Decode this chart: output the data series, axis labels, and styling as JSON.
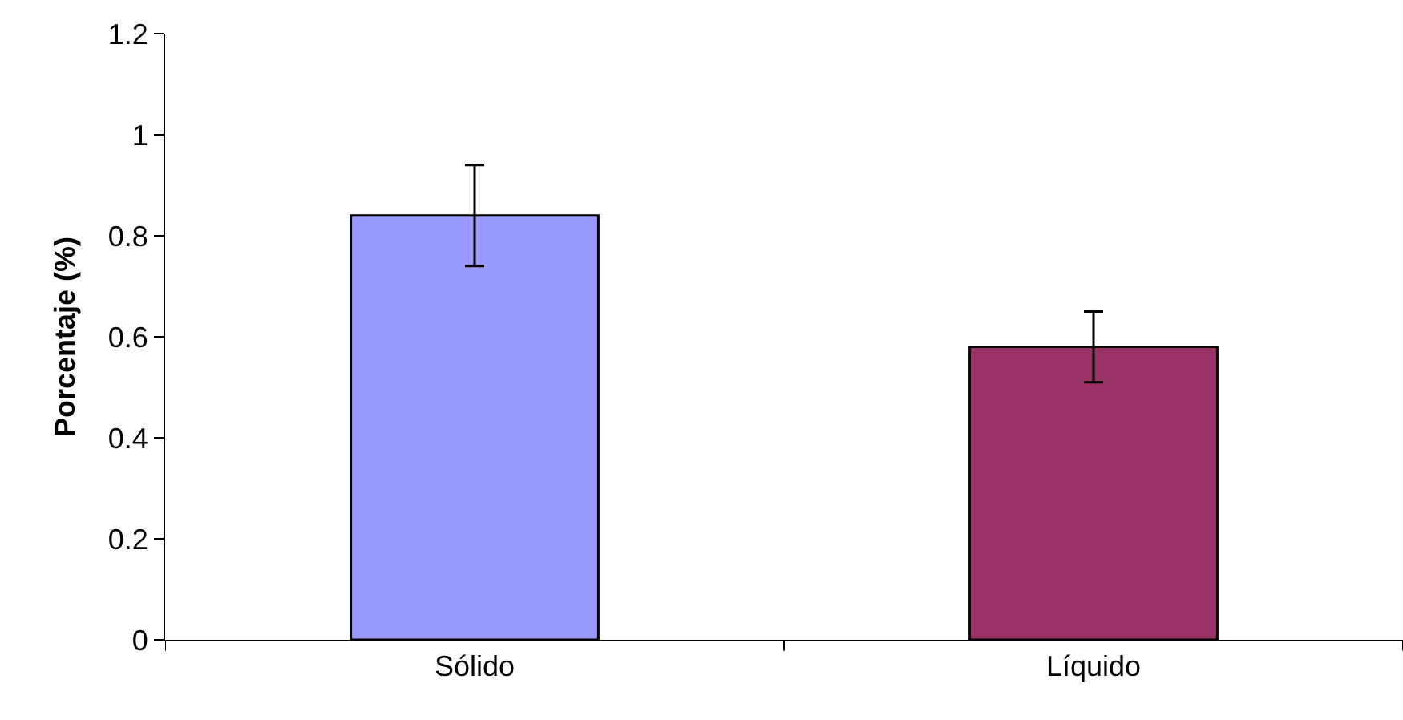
{
  "chart_data": {
    "type": "bar",
    "ylabel": "Porcentaje (%)",
    "categories": [
      "Sólido",
      "Líquido"
    ],
    "values": [
      0.84,
      0.58
    ],
    "colors": [
      "#9999ff",
      "#993366"
    ],
    "errors": [
      0.1,
      0.07
    ],
    "ylim": [
      0,
      1.2
    ],
    "yticks": [
      0,
      0.2,
      0.4,
      0.6,
      0.8,
      1,
      1.2
    ]
  }
}
